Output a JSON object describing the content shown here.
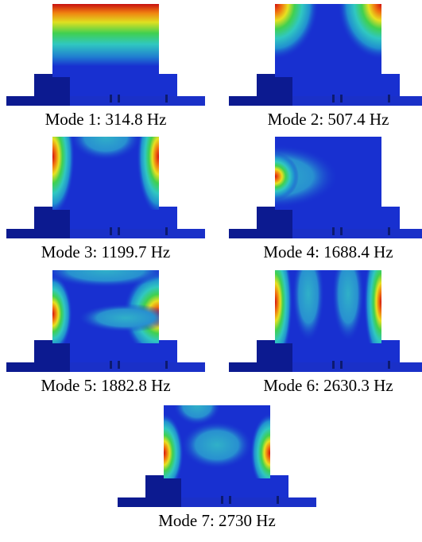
{
  "modes": [
    {
      "label": "Mode 1: 314.8 Hz"
    },
    {
      "label": "Mode 2: 507.4 Hz"
    },
    {
      "label": "Mode 3: 1199.7 Hz"
    },
    {
      "label": "Mode 4: 1688.4 Hz"
    },
    {
      "label": "Mode 5: 1882.8 Hz"
    },
    {
      "label": "Mode 6: 2630.3 Hz"
    },
    {
      "label": "Mode 7: 2730 Hz"
    }
  ]
}
